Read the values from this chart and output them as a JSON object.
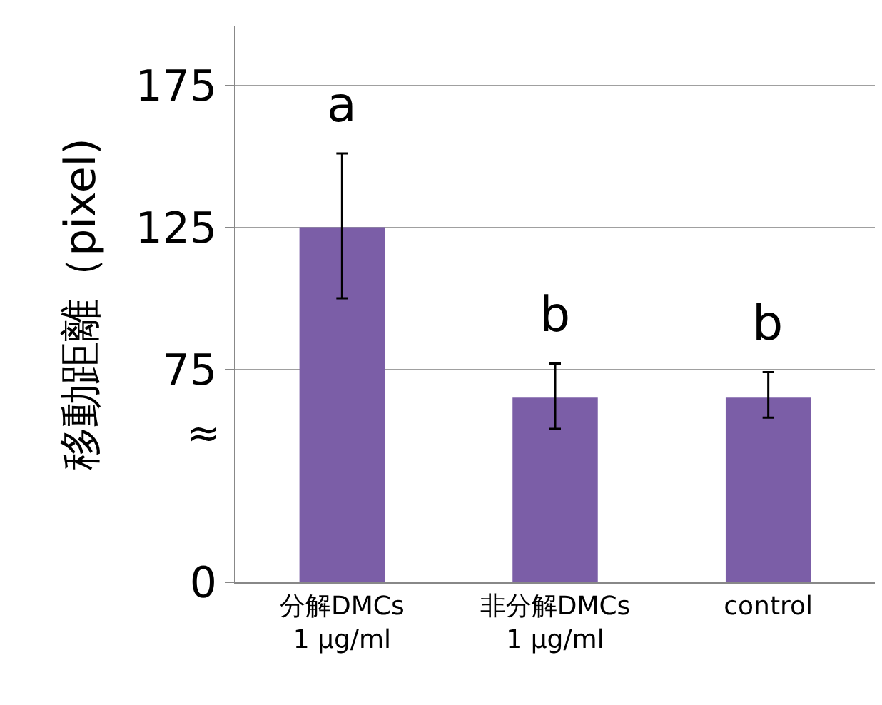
{
  "chart_data": {
    "type": "bar",
    "ylabel": "移動距離（pixel)",
    "categories": [
      "分解DMCs\n1 μg/ml",
      "非分解DMCs\n1 μg/ml",
      "control"
    ],
    "values": [
      125,
      65,
      65
    ],
    "color": "#7b5ea7",
    "errors": [
      [
        100,
        151
      ],
      [
        54,
        77
      ],
      [
        58,
        74
      ]
    ],
    "ylim": [
      0,
      196
    ],
    "yticks": [
      0,
      75,
      125,
      175
    ],
    "grid": "y",
    "legend": false,
    "annotations": [
      "a",
      "b",
      "b",
      "≈"
    ]
  }
}
